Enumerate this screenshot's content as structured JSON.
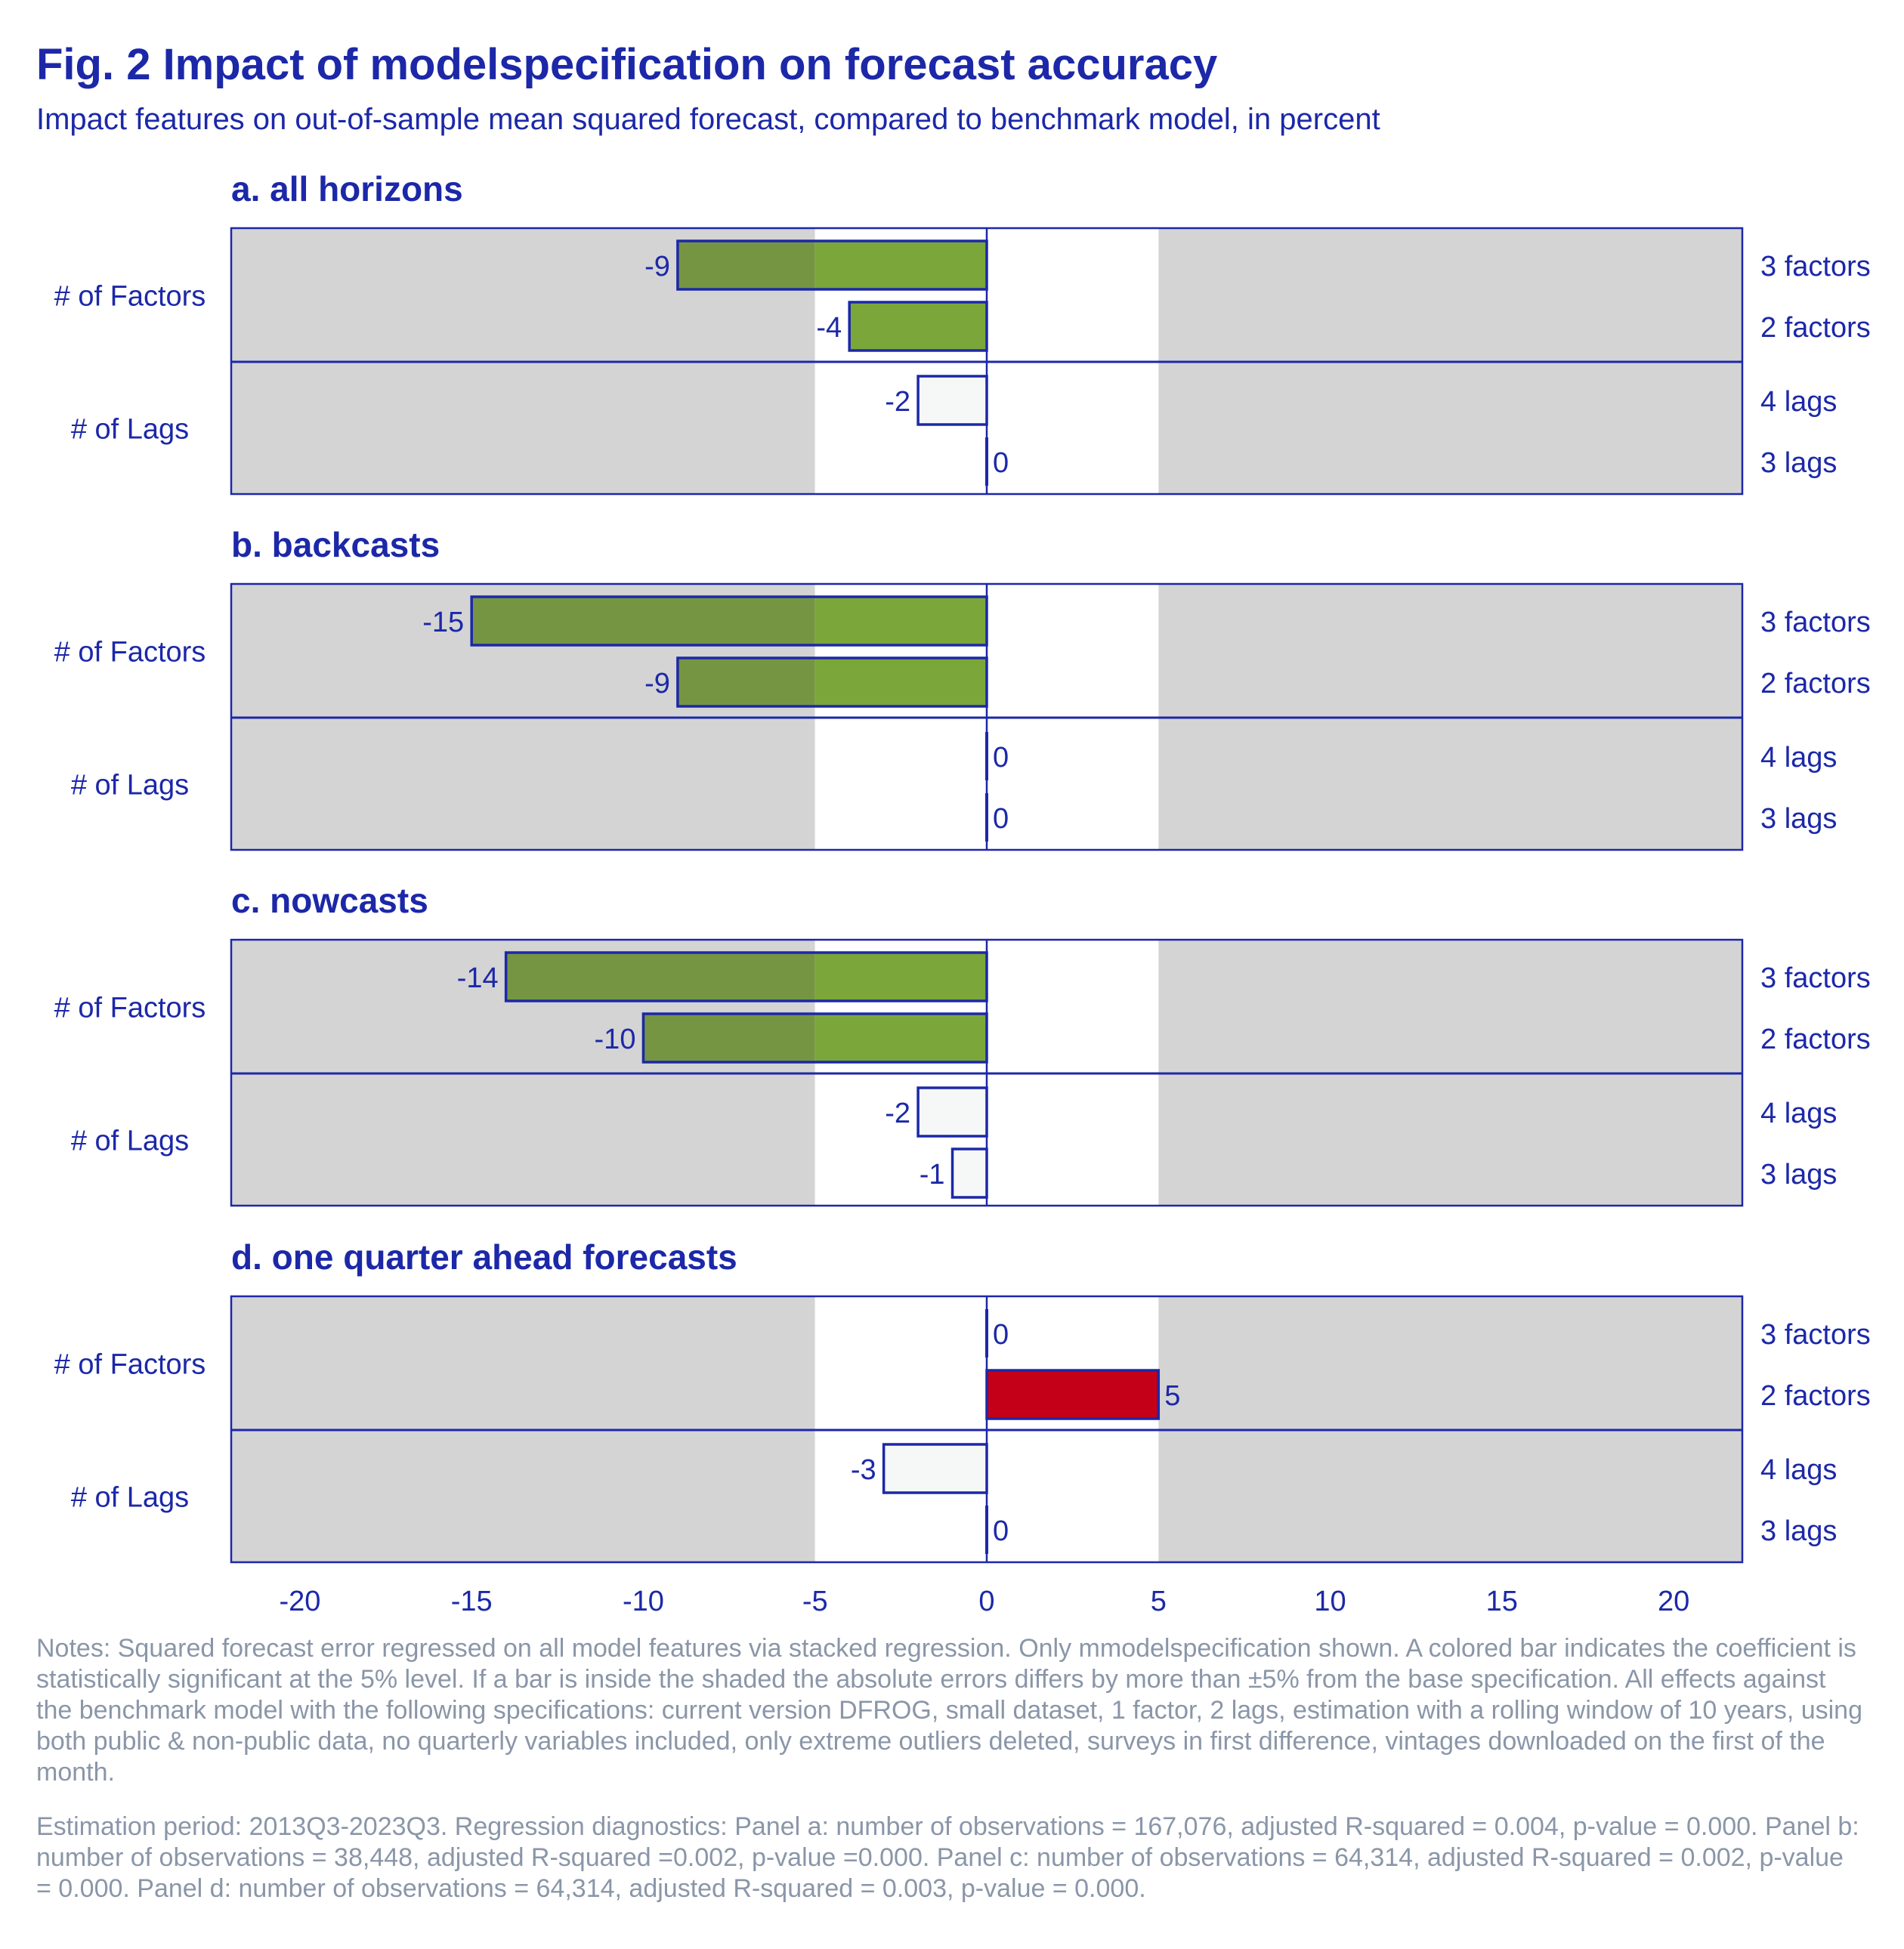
{
  "title": "Fig. 2 Impact of modelspecification on forecast accuracy",
  "subtitle": "Impact features on out-of-sample mean squared forecast, compared to benchmark model, in percent",
  "notes": "Notes: Squared forecast error regressed on all model features via stacked regression. Only mmodelspecification shown. A colored bar indicates the coefficient is statistically significant at the 5% level. If a bar is inside the shaded the absolute errors differs by more than ±5% from the base specification. All effects against the benchmark model with the following specifications: current version DFROG, small dataset, 1 factor, 2 lags, estimation with a rolling window of 10 years, using both public & non-public data, no quarterly variables included, only extreme outliers deleted, surveys in first difference, vintages downloaded on the first of the month.",
  "diagnostics": " Estimation period: 2013Q3-2023Q3. Regression diagnostics: Panel a: number of observations = 167,076, adjusted R-squared = 0.004, p-value = 0.000. Panel b: number of observations = 38,448, adjusted R-squared =0.002, p-value =0.000. Panel c: number of observations = 64,314, adjusted R-squared = 0.002, p-value = 0.000. Panel d: number of observations = 64,314, adjusted R-squared = 0.003, p-value = 0.000.",
  "colors": {
    "text": "#1c28a8",
    "frame": "#1c28a8",
    "shade": "#d4d4d4",
    "significant_negative": "#7ba63a",
    "significant_negative_in_shade": "#759543",
    "significant_positive": "#c40018",
    "not_significant": "#f5f8f7",
    "notes": "#8a96a8"
  },
  "chart_data": {
    "type": "bar",
    "orientation": "horizontal",
    "xlim": [
      -22,
      22
    ],
    "xticks": [
      -20,
      -15,
      -10,
      -5,
      0,
      5,
      10,
      15,
      20
    ],
    "shaded_regions": "x < -5 and x > 5",
    "group_labels": [
      "# of Factors",
      "# of Lags"
    ],
    "category_labels": [
      "3 factors",
      "2 factors",
      "4 lags",
      "3 lags"
    ],
    "panels": [
      {
        "title": "a. all horizons",
        "bars": [
          {
            "label": "3 factors",
            "value": -9,
            "display": "-9",
            "significant": true
          },
          {
            "label": "2 factors",
            "value": -4,
            "display": "-4",
            "significant": true
          },
          {
            "label": "4 lags",
            "value": -2,
            "display": "-2",
            "significant": false
          },
          {
            "label": "3 lags",
            "value": 0,
            "display": "0",
            "significant": false
          }
        ]
      },
      {
        "title": "b. backcasts",
        "bars": [
          {
            "label": "3 factors",
            "value": -15,
            "display": "-15",
            "significant": true
          },
          {
            "label": "2 factors",
            "value": -9,
            "display": "-9",
            "significant": true
          },
          {
            "label": "4 lags",
            "value": 0,
            "display": "0",
            "significant": false
          },
          {
            "label": "3 lags",
            "value": 0,
            "display": "0",
            "significant": false
          }
        ]
      },
      {
        "title": "c. nowcasts",
        "bars": [
          {
            "label": "3 factors",
            "value": -14,
            "display": "-14",
            "significant": true
          },
          {
            "label": "2 factors",
            "value": -10,
            "display": "-10",
            "significant": true
          },
          {
            "label": "4 lags",
            "value": -2,
            "display": "-2",
            "significant": false
          },
          {
            "label": "3 lags",
            "value": -1,
            "display": "-1",
            "significant": false
          }
        ]
      },
      {
        "title": "d. one quarter ahead forecasts",
        "bars": [
          {
            "label": "3 factors",
            "value": 0,
            "display": "0",
            "significant": false
          },
          {
            "label": "2 factors",
            "value": 5,
            "display": "5",
            "significant": true
          },
          {
            "label": "4 lags",
            "value": -3,
            "display": "-3",
            "significant": false
          },
          {
            "label": "3 lags",
            "value": 0,
            "display": "0",
            "significant": false
          }
        ]
      }
    ]
  }
}
